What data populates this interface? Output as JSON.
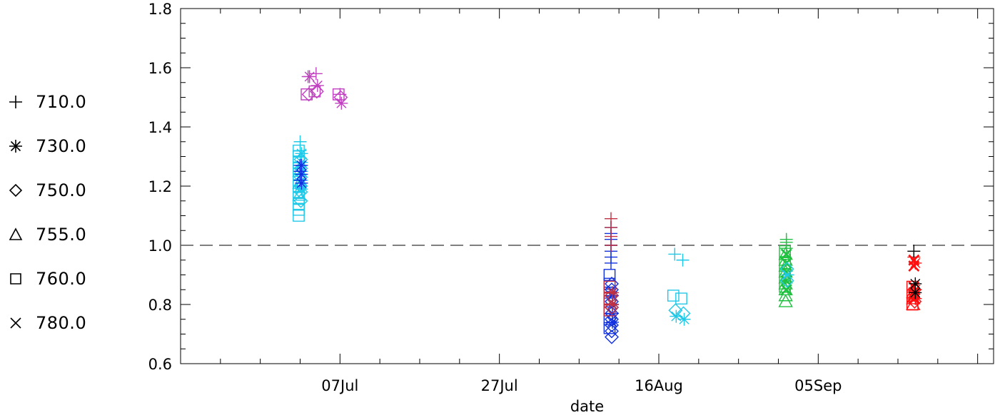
{
  "chart_data": {
    "type": "scatter",
    "title": "",
    "xlabel": "date",
    "ylabel": "",
    "xlim": [
      "2023-06-17",
      "2023-09-27"
    ],
    "ylim": [
      0.6,
      1.8
    ],
    "x_ticks": [
      "07Jul",
      "27Jul",
      "16Aug",
      "05Sep"
    ],
    "x_tick_dates": [
      "2023-07-07",
      "2023-07-27",
      "2023-08-16",
      "2023-09-05"
    ],
    "y_ticks": [
      "0.6",
      "0.8",
      "1.0",
      "1.2",
      "1.4",
      "1.6",
      "1.8"
    ],
    "reference_line": {
      "y": 1.0,
      "style": "dashed",
      "color": "#555555"
    },
    "grid": false,
    "legend_position": "left",
    "legend": [
      {
        "label": "710.0",
        "marker": "plus"
      },
      {
        "label": "730.0",
        "marker": "asterisk"
      },
      {
        "label": "750.0",
        "marker": "diamond"
      },
      {
        "label": "755.0",
        "marker": "triangle"
      },
      {
        "label": "760.0",
        "marker": "square"
      },
      {
        "label": "780.0",
        "marker": "cross"
      }
    ],
    "colors": {
      "magenta": "#c040c0",
      "cyan": "#20c8e8",
      "blue": "#1030e0",
      "darkred": "#c03040",
      "green": "#20c040",
      "red": "#ff1010",
      "black": "#000000"
    },
    "groups": [
      {
        "date": "2023-07-02",
        "color": "cyan",
        "markers": {
          "square": [
            1.1,
            1.12,
            1.14,
            1.16,
            1.18,
            1.2,
            1.22,
            1.24,
            1.26,
            1.28,
            1.3,
            1.32
          ],
          "diamond": [
            1.15,
            1.18,
            1.2,
            1.23,
            1.26,
            1.29
          ],
          "asterisk": [
            1.19,
            1.22,
            1.25,
            1.28,
            1.31
          ],
          "plus": [
            1.2,
            1.24,
            1.28,
            1.32,
            1.35
          ],
          "triangle": [
            1.17,
            1.21,
            1.25
          ]
        }
      },
      {
        "date": "2023-07-02",
        "color": "blue",
        "markers": {
          "plus": [
            1.22,
            1.25,
            1.27
          ],
          "asterisk": [
            1.21,
            1.24,
            1.27
          ]
        }
      },
      {
        "date": "2023-07-03",
        "color": "magenta",
        "markers": {
          "square": [
            1.51
          ],
          "diamond": [
            1.51
          ],
          "asterisk": [
            1.57
          ],
          "plus": [
            1.57
          ]
        }
      },
      {
        "date": "2023-07-04",
        "color": "magenta",
        "markers": {
          "square": [
            1.52
          ],
          "diamond": [
            1.52
          ],
          "asterisk": [
            1.54
          ],
          "plus": [
            1.58
          ]
        }
      },
      {
        "date": "2023-07-07",
        "color": "magenta",
        "markers": {
          "square": [
            1.51
          ],
          "diamond": [
            1.5
          ],
          "asterisk": [
            1.48
          ],
          "plus": [
            1.51
          ]
        }
      },
      {
        "date": "2023-08-10",
        "color": "blue",
        "markers": {
          "diamond": [
            0.69,
            0.71,
            0.73,
            0.75,
            0.77,
            0.79,
            0.81,
            0.83,
            0.85,
            0.87
          ],
          "square": [
            0.72,
            0.75,
            0.78,
            0.81,
            0.84,
            0.87,
            0.9
          ],
          "asterisk": [
            0.74,
            0.77,
            0.8,
            0.83
          ],
          "plus": [
            0.94,
            0.96,
            0.98,
            1.0,
            1.02,
            1.04,
            1.06
          ]
        }
      },
      {
        "date": "2023-08-10",
        "color": "darkred",
        "markers": {
          "plus": [
            1.0,
            1.03,
            1.06,
            1.09
          ],
          "square": [
            0.78,
            0.82,
            0.86
          ],
          "diamond": [
            0.79,
            0.83
          ],
          "asterisk": [
            0.8,
            0.84
          ]
        }
      },
      {
        "date": "2023-08-18",
        "color": "cyan",
        "markers": {
          "plus": [
            0.97
          ],
          "square": [
            0.83
          ],
          "diamond": [
            0.78
          ],
          "asterisk": [
            0.76
          ]
        }
      },
      {
        "date": "2023-08-19",
        "color": "cyan",
        "markers": {
          "plus": [
            0.95
          ],
          "square": [
            0.82
          ],
          "diamond": [
            0.77
          ],
          "asterisk": [
            0.75
          ]
        }
      },
      {
        "date": "2023-09-01",
        "color": "green",
        "markers": {
          "triangle": [
            0.81,
            0.83,
            0.85,
            0.87,
            0.89,
            0.91,
            0.93,
            0.95,
            0.97
          ],
          "cross": [
            0.85,
            0.88,
            0.91,
            0.94,
            0.97
          ],
          "plus": [
            0.99,
            1.01,
            1.02
          ],
          "square": [
            0.86,
            0.9,
            0.94,
            0.98
          ]
        }
      },
      {
        "date": "2023-09-01",
        "color": "cyan",
        "markers": {
          "diamond": [
            0.88,
            0.92
          ],
          "asterisk": [
            0.9
          ]
        }
      },
      {
        "date": "2023-09-17",
        "color": "red",
        "markers": {
          "cross": [
            0.82,
            0.84,
            0.86,
            0.93,
            0.95
          ],
          "triangle": [
            0.8,
            0.82,
            0.84
          ],
          "square": [
            0.8,
            0.83,
            0.86
          ],
          "diamond": [
            0.81,
            0.85
          ],
          "asterisk": [
            0.82,
            0.85,
            0.94
          ],
          "plus": [
            0.96
          ]
        }
      },
      {
        "date": "2023-09-17",
        "color": "black",
        "markers": {
          "plus": [
            0.98
          ],
          "asterisk": [
            0.87,
            0.84
          ]
        }
      }
    ]
  }
}
